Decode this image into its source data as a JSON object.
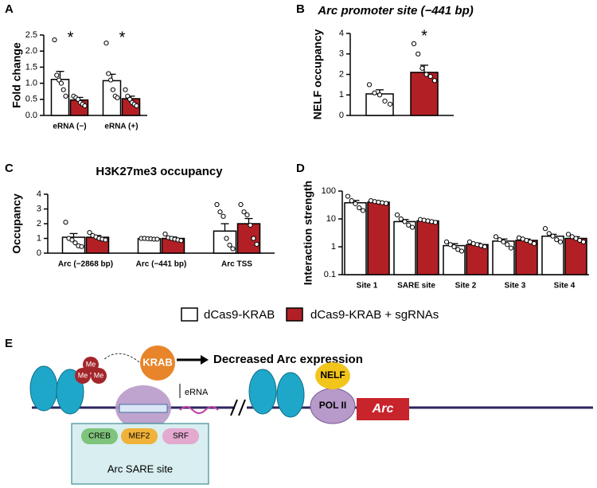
{
  "chart_data": [
    {
      "type": "bar",
      "panel": "A",
      "ylabel": "Fold change",
      "categories": [
        "eRNA (−)",
        "eRNA (+)"
      ],
      "ylim": [
        0,
        2.5
      ],
      "yticks": [
        {
          "value": 0,
          "label": "0.0"
        },
        {
          "value": 0.5,
          "label": "0.5"
        },
        {
          "value": 1,
          "label": "1.0"
        },
        {
          "value": 1.5,
          "label": "1.5"
        },
        {
          "value": 2,
          "label": "2.0"
        },
        {
          "value": 2.5,
          "label": "2.5"
        }
      ],
      "series": [
        {
          "name": "dCas9-KRAB",
          "color": "#ffffff",
          "values": [
            1.12,
            1.08
          ],
          "errors": [
            0.25,
            0.2
          ],
          "points": [
            [
              2.35,
              1.25,
              1.1,
              1.0,
              0.8,
              0.6
            ],
            [
              2.25,
              1.3,
              1.1,
              0.8,
              0.6,
              0.55
            ]
          ]
        },
        {
          "name": "dCas9-KRAB + sgRNAs",
          "color": "#b22025",
          "values": [
            0.48,
            0.52
          ],
          "errors": [
            0.08,
            0.08
          ],
          "points": [
            [
              0.6,
              0.55,
              0.5,
              0.4,
              0.35,
              0.3
            ],
            [
              0.8,
              0.6,
              0.5,
              0.4,
              0.35,
              0.3
            ]
          ],
          "significance": [
            "*",
            "*"
          ]
        }
      ]
    },
    {
      "type": "bar",
      "panel": "B",
      "title": "Arc promoter site (−441 bp)",
      "ylabel": "NELF occupancy",
      "categories": [
        null
      ],
      "ylim": [
        0,
        4
      ],
      "yticks": [
        0,
        1,
        2,
        3,
        4
      ],
      "series": [
        {
          "color": "#ffffff",
          "values": [
            1.05
          ],
          "errors": [
            0.2
          ],
          "points": [
            [
              1.5,
              1.1,
              1.0,
              0.7,
              0.55
            ]
          ]
        },
        {
          "color": "#b22025",
          "values": [
            2.1
          ],
          "errors": [
            0.35
          ],
          "points": [
            [
              3.5,
              3.0,
              2.3,
              2.0,
              1.9,
              1.7
            ]
          ],
          "significance": [
            "*"
          ]
        }
      ]
    },
    {
      "type": "bar",
      "panel": "C",
      "title": "H3K27me3 occupancy",
      "ylabel": "Occupancy",
      "categories": [
        "Arc (−2868 bp)",
        "Arc (−441 bp)",
        "Arc TSS"
      ],
      "ylim": [
        0,
        4
      ],
      "yticks": [
        0,
        1,
        2,
        3,
        4
      ],
      "series": [
        {
          "color": "#ffffff",
          "values": [
            1.08,
            0.98,
            1.5
          ],
          "errors": [
            0.25,
            0.03,
            0.5
          ],
          "points": [
            [
              2.1,
              1.0,
              0.9,
              0.7,
              0.5,
              0.45
            ],
            [
              1.0,
              1.0,
              0.98,
              0.97,
              0.95,
              0.95
            ],
            [
              3.3,
              2.8,
              2.5,
              1.0,
              0.55,
              0.3
            ]
          ]
        },
        {
          "color": "#b22025",
          "values": [
            1.08,
            1.0,
            2.0
          ],
          "errors": [
            0.12,
            0.1,
            0.35
          ],
          "points": [
            [
              1.4,
              1.2,
              1.1,
              1.0,
              0.95,
              0.9
            ],
            [
              1.3,
              1.05,
              1.0,
              0.95,
              0.9,
              0.85
            ],
            [
              3.3,
              2.8,
              2.6,
              1.9,
              1.0,
              0.6
            ]
          ]
        }
      ]
    },
    {
      "type": "bar",
      "panel": "D",
      "ylabel": "Interaction strength",
      "categories": [
        "Site 1",
        "SARE site",
        "Site 2",
        "Site 3",
        "Site 4"
      ],
      "log_scale": true,
      "ylim": [
        0.1,
        100
      ],
      "yticks": [
        0.1,
        1,
        10,
        100
      ],
      "series": [
        {
          "color": "#ffffff",
          "values": [
            38,
            8,
            1.1,
            1.6,
            2.4
          ],
          "errors": [
            8,
            1.5,
            0.2,
            0.3,
            0.4
          ],
          "points": [
            [
              65,
              45,
              35,
              25,
              20
            ],
            [
              14,
              10,
              8,
              6,
              5
            ],
            [
              1.5,
              1.2,
              1.0,
              0.8,
              0.7
            ],
            [
              2.3,
              1.8,
              1.5,
              1.2,
              0.9
            ],
            [
              4.5,
              3,
              2.4,
              1.8,
              1.5
            ]
          ]
        },
        {
          "color": "#b22025",
          "values": [
            40,
            8.5,
            1.2,
            1.7,
            2.0
          ],
          "errors": [
            3,
            0.5,
            0.15,
            0.2,
            0.3
          ],
          "points": [
            [
              45,
              42,
              40,
              38,
              36
            ],
            [
              9.5,
              9,
              8.5,
              8,
              7.5
            ],
            [
              1.5,
              1.3,
              1.2,
              1.1,
              1.0
            ],
            [
              2.1,
              1.9,
              1.7,
              1.5,
              1.3
            ],
            [
              2.8,
              2.3,
              2.0,
              1.7,
              1.5
            ]
          ]
        }
      ]
    }
  ],
  "diagram": {
    "panel": "E",
    "me": [
      "Me",
      "Me",
      "Me"
    ],
    "krab": "KRAB",
    "erna": "eRNA",
    "outcome": "Decreased Arc expression",
    "nelf": "NELF",
    "pol": "POL II",
    "gene": "Arc",
    "factors": [
      "CREB",
      "MEF2",
      "SRF"
    ],
    "site": "Arc SARE site"
  }
}
